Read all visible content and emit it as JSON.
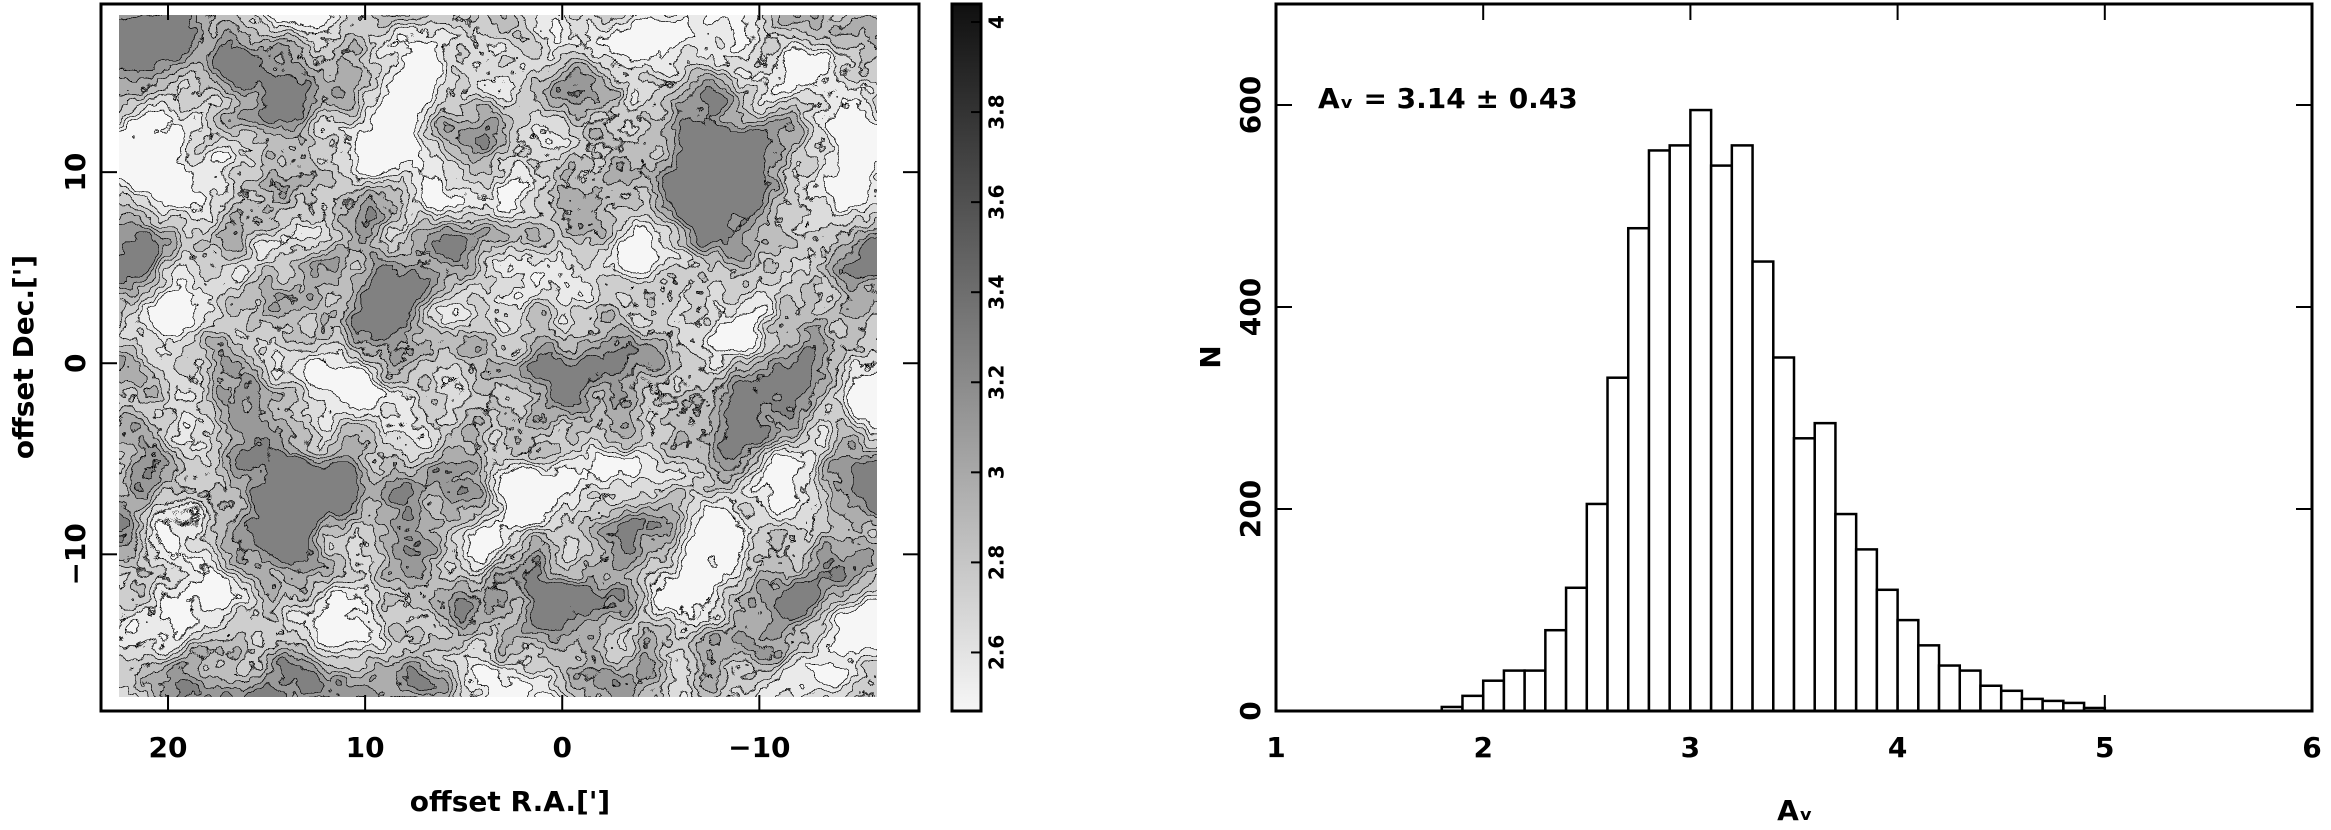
{
  "chart_data": [
    {
      "type": "image",
      "xlabel": "offset R.A.[']",
      "ylabel": "offset Dec.[']",
      "xlim": [
        23.4,
        -18.1
      ],
      "xticks": [
        20,
        10,
        0,
        {
          "value": -10,
          "label": "−10"
        }
      ],
      "ylim": [
        -18.2,
        18.8
      ],
      "yticks": [
        10,
        0,
        {
          "value": -10,
          "label": "−10"
        }
      ],
      "zlim": [
        2.47,
        4.04
      ],
      "zticks": [
        4,
        3.8,
        3.6,
        3.4,
        3.2,
        3,
        2.8,
        2.6
      ],
      "colormap": [
        "#f6f6f6",
        "#101010"
      ],
      "contours": true
    },
    {
      "type": "histogram",
      "xlabel": "Aᵥ",
      "ylabel": "N",
      "annotation": "Aᵥ = 3.14 ± 0.43",
      "bins": [
        1.8,
        1.9,
        2.0,
        2.1,
        2.2,
        2.3,
        2.4,
        2.5,
        2.6,
        2.7,
        2.8,
        2.9,
        3.0,
        3.1,
        3.2,
        3.3,
        3.4,
        3.5,
        3.6,
        3.7,
        3.8,
        3.9,
        4.0,
        4.1,
        4.2,
        4.3,
        4.4,
        4.5,
        4.6,
        4.7,
        4.8,
        4.9,
        5.0
      ],
      "values": [
        4,
        15,
        30,
        40,
        40,
        80,
        122,
        205,
        330,
        478,
        555,
        560,
        595,
        540,
        560,
        445,
        350,
        270,
        285,
        195,
        160,
        120,
        90,
        65,
        45,
        40,
        25,
        20,
        12,
        10,
        8,
        3
      ],
      "color": "#ffffff",
      "edgecolor": "#000000",
      "xlim": [
        1,
        6
      ],
      "xticks": [
        1,
        2,
        3,
        4,
        5,
        6
      ],
      "ylim": [
        0,
        700
      ],
      "yticks": [
        0,
        200,
        400,
        600
      ]
    }
  ]
}
